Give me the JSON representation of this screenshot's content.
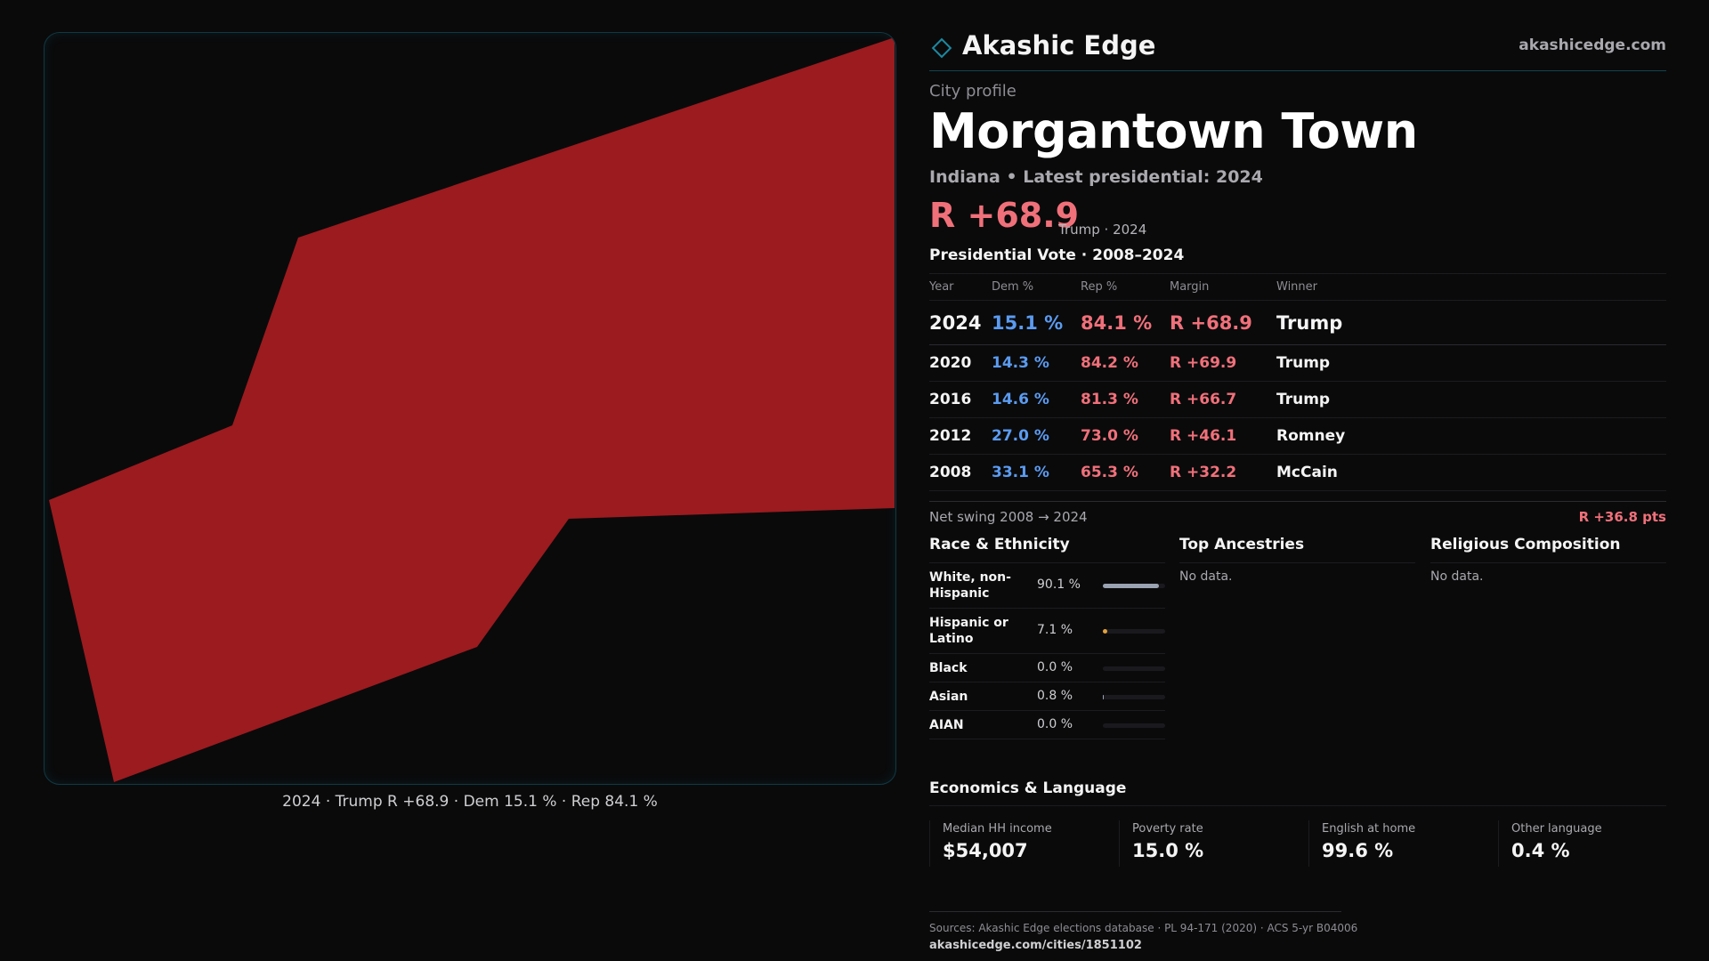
{
  "brand": {
    "name": "Akashic Edge",
    "url": "akashicedge.com",
    "accent": "#1b8aa0"
  },
  "map": {
    "fill_color": "#9b1b1f",
    "caption": "2024 · Trump R +68.9 · Dem 15.1 % · Rep 84.1 %"
  },
  "profile": {
    "kicker": "City profile",
    "title": "Morgantown Town",
    "subtitle": "Indiana • Latest presidential: 2024",
    "margin": "R +68.9",
    "margin_note": "Trump · 2024"
  },
  "presidential": {
    "title": "Presidential Vote · 2008–2024",
    "headers": [
      "Year",
      "Dem %",
      "Rep %",
      "Margin",
      "Winner"
    ],
    "rows": [
      {
        "year": "2024",
        "dem": "15.1 %",
        "rep": "84.1 %",
        "margin": "R +68.9",
        "winner": "Trump"
      },
      {
        "year": "2020",
        "dem": "14.3 %",
        "rep": "84.2 %",
        "margin": "R +69.9",
        "winner": "Trump"
      },
      {
        "year": "2016",
        "dem": "14.6 %",
        "rep": "81.3 %",
        "margin": "R +66.7",
        "winner": "Trump"
      },
      {
        "year": "2012",
        "dem": "27.0 %",
        "rep": "73.0 %",
        "margin": "R +46.1",
        "winner": "Romney"
      },
      {
        "year": "2008",
        "dem": "33.1 %",
        "rep": "65.3 %",
        "margin": "R +32.2",
        "winner": "McCain"
      }
    ],
    "swing_label": "Net swing 2008 → 2024",
    "swing_value": "R +36.8 pts",
    "dem_color": "#5b9bf0",
    "rep_color": "#f0707a"
  },
  "race": {
    "title": "Race & Ethnicity",
    "rows": [
      {
        "label": "White, non-Hispanic",
        "value": "90.1 %",
        "share": 0.901,
        "color": "#9aa3b2"
      },
      {
        "label": "Hispanic or Latino",
        "value": "7.1 %",
        "share": 0.071,
        "color": "#e2a23b"
      },
      {
        "label": "Black",
        "value": "0.0 %",
        "share": 0.0,
        "color": "#9aa3b2"
      },
      {
        "label": "Asian",
        "value": "0.8 %",
        "share": 0.008,
        "color": "#9aa3b2"
      },
      {
        "label": "AIAN",
        "value": "0.0 %",
        "share": 0.0,
        "color": "#9aa3b2"
      }
    ]
  },
  "ancestries": {
    "title": "Top Ancestries",
    "empty": "No data."
  },
  "religion": {
    "title": "Religious Composition",
    "empty": "No data."
  },
  "economics": {
    "title": "Economics & Language",
    "cells": [
      {
        "label": "Median HH income",
        "value": "$54,007"
      },
      {
        "label": "Poverty rate",
        "value": "15.0 %"
      },
      {
        "label": "English at home",
        "value": "99.6 %"
      },
      {
        "label": "Other language",
        "value": "0.4 %"
      }
    ]
  },
  "footer": {
    "sources": "Sources: Akashic Edge elections database · PL 94-171 (2020) · ACS 5-yr B04006",
    "url": "akashicedge.com/cities/1851102"
  }
}
